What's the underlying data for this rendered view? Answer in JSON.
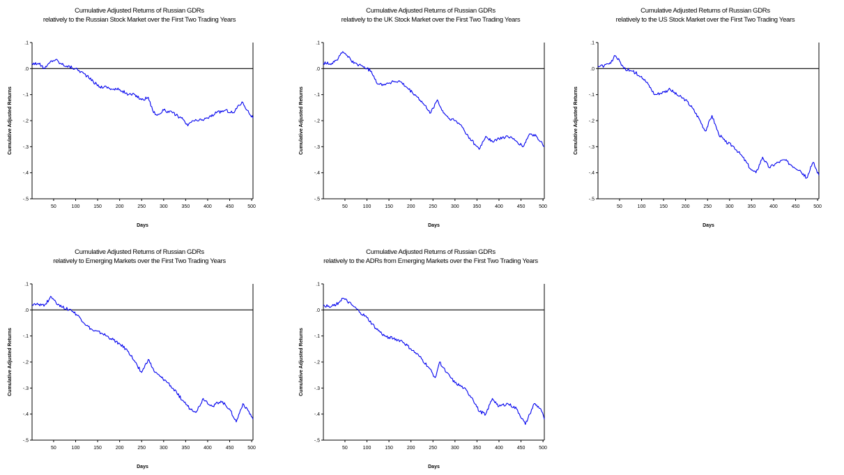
{
  "colors": {
    "series": "#0000ee",
    "axis": "#000000",
    "background": "#ffffff"
  },
  "chart_data": [
    {
      "type": "line",
      "title": "Cumulative Adjusted Returns of Russian GDRs",
      "subtitle": "relatively to the Russian Stock Market over the First Two Trading Years",
      "xlabel": "Days",
      "ylabel": "Cumulative Adjusted Returns",
      "xlim": [
        1,
        503
      ],
      "ylim": [
        -0.5,
        0.1
      ],
      "xticks": [
        50,
        100,
        150,
        200,
        250,
        300,
        350,
        400,
        450,
        500
      ],
      "xtick_labels": [
        "50",
        "100",
        "150",
        "200",
        "250",
        "300",
        "350",
        "400",
        "450",
        "500"
      ],
      "yticks": [
        0.1,
        0.0,
        -0.1,
        -0.2,
        -0.3,
        -0.4,
        -0.5
      ],
      "ytick_labels": [
        ".1",
        ".0",
        "-.1",
        "-.2",
        "-.3",
        "-.4",
        "-.5"
      ],
      "reference_line": 0.0,
      "series": [
        {
          "x": [
            1,
            15,
            30,
            45,
            55,
            65,
            80,
            100,
            120,
            140,
            155,
            170,
            185,
            200,
            220,
            235,
            250,
            265,
            275,
            285,
            300,
            320,
            340,
            355,
            365,
            380,
            400,
            420,
            440,
            460,
            470,
            480,
            490,
            503
          ],
          "values": [
            0.02,
            0.02,
            0.0,
            0.03,
            0.035,
            0.02,
            0.01,
            0.0,
            -0.02,
            -0.05,
            -0.07,
            -0.07,
            -0.08,
            -0.08,
            -0.1,
            -0.1,
            -0.12,
            -0.11,
            -0.16,
            -0.18,
            -0.16,
            -0.17,
            -0.19,
            -0.22,
            -0.2,
            -0.2,
            -0.19,
            -0.17,
            -0.16,
            -0.17,
            -0.14,
            -0.13,
            -0.16,
            -0.19
          ]
        }
      ]
    },
    {
      "type": "line",
      "title": "Cumulative Adjusted Returns of Russian GDRs",
      "subtitle": "relatively to the UK Stock Market over the First Two Trading Years",
      "xlabel": "Days",
      "ylabel": "Cumulative Adjusted Returns",
      "xlim": [
        1,
        503
      ],
      "ylim": [
        -0.5,
        0.1
      ],
      "xticks": [
        50,
        100,
        150,
        200,
        250,
        300,
        350,
        400,
        450,
        500
      ],
      "xtick_labels": [
        "50",
        "100",
        "150",
        "200",
        "250",
        "300",
        "350",
        "400",
        "450",
        "500"
      ],
      "yticks": [
        0.1,
        0.0,
        -0.1,
        -0.2,
        -0.3,
        -0.4,
        -0.5
      ],
      "ytick_labels": [
        ".1",
        ".0",
        "-.1",
        "-.2",
        "-.3",
        "-.4",
        "-.5"
      ],
      "reference_line": 0.0,
      "series": [
        {
          "x": [
            1,
            20,
            35,
            45,
            55,
            70,
            90,
            110,
            125,
            140,
            160,
            175,
            195,
            215,
            230,
            245,
            260,
            270,
            285,
            300,
            315,
            330,
            345,
            355,
            370,
            385,
            400,
            420,
            440,
            455,
            470,
            485,
            495,
            503
          ],
          "values": [
            0.02,
            0.02,
            0.04,
            0.065,
            0.05,
            0.02,
            0.01,
            -0.01,
            -0.06,
            -0.06,
            -0.05,
            -0.05,
            -0.08,
            -0.11,
            -0.14,
            -0.17,
            -0.12,
            -0.16,
            -0.19,
            -0.2,
            -0.22,
            -0.26,
            -0.29,
            -0.31,
            -0.26,
            -0.28,
            -0.27,
            -0.26,
            -0.28,
            -0.3,
            -0.25,
            -0.26,
            -0.28,
            -0.3
          ]
        }
      ]
    },
    {
      "type": "line",
      "title": "Cumulative Adjusted Returns of Russian GDRs",
      "subtitle": "relatively to the US Stock Market over the First Two Trading Years",
      "xlabel": "Days",
      "ylabel": "Cumulative Adjusted Returns",
      "xlim": [
        1,
        503
      ],
      "ylim": [
        -0.5,
        0.1
      ],
      "xticks": [
        50,
        100,
        150,
        200,
        250,
        300,
        350,
        400,
        450,
        500
      ],
      "xtick_labels": [
        "50",
        "100",
        "150",
        "200",
        "250",
        "300",
        "350",
        "400",
        "450",
        "500"
      ],
      "yticks": [
        0.1,
        0.0,
        -0.1,
        -0.2,
        -0.3,
        -0.4,
        -0.5
      ],
      "ytick_labels": [
        ".1",
        ".0",
        "-.1",
        "-.2",
        "-.3",
        "-.4",
        "-.5"
      ],
      "reference_line": 0.0,
      "series": [
        {
          "x": [
            1,
            15,
            30,
            40,
            50,
            60,
            80,
            100,
            115,
            130,
            150,
            165,
            180,
            200,
            215,
            230,
            245,
            260,
            275,
            290,
            310,
            330,
            350,
            360,
            375,
            390,
            410,
            425,
            440,
            460,
            475,
            490,
            503
          ],
          "values": [
            0.01,
            0.01,
            0.02,
            0.05,
            0.03,
            0.0,
            -0.01,
            -0.03,
            -0.06,
            -0.1,
            -0.09,
            -0.08,
            -0.1,
            -0.12,
            -0.15,
            -0.19,
            -0.24,
            -0.18,
            -0.25,
            -0.28,
            -0.3,
            -0.34,
            -0.39,
            -0.4,
            -0.34,
            -0.38,
            -0.36,
            -0.35,
            -0.37,
            -0.39,
            -0.42,
            -0.36,
            -0.41
          ]
        }
      ]
    },
    {
      "type": "line",
      "title": "Cumulative Adjusted Returns of Russian GDRs",
      "subtitle": "relatively to Emerging Markets over the First Two Trading Years",
      "xlabel": "Days",
      "ylabel": "Cumulative Adjusted Returns",
      "xlim": [
        1,
        503
      ],
      "ylim": [
        -0.5,
        0.1
      ],
      "xticks": [
        50,
        100,
        150,
        200,
        250,
        300,
        350,
        400,
        450,
        500
      ],
      "xtick_labels": [
        "50",
        "100",
        "150",
        "200",
        "250",
        "300",
        "350",
        "400",
        "450",
        "500"
      ],
      "yticks": [
        0.1,
        0.0,
        -0.1,
        -0.2,
        -0.3,
        -0.4,
        -0.5
      ],
      "ytick_labels": [
        ".1",
        ".0",
        "-.1",
        "-.2",
        "-.3",
        "-.4",
        "-.5"
      ],
      "reference_line": 0.0,
      "series": [
        {
          "x": [
            1,
            15,
            30,
            45,
            55,
            70,
            90,
            110,
            125,
            140,
            160,
            180,
            200,
            220,
            235,
            250,
            265,
            280,
            295,
            310,
            330,
            345,
            360,
            375,
            390,
            410,
            430,
            450,
            465,
            480,
            490,
            503
          ],
          "values": [
            0.02,
            0.02,
            0.02,
            0.05,
            0.03,
            0.01,
            0.0,
            -0.03,
            -0.06,
            -0.08,
            -0.09,
            -0.11,
            -0.13,
            -0.16,
            -0.2,
            -0.24,
            -0.19,
            -0.24,
            -0.26,
            -0.28,
            -0.32,
            -0.35,
            -0.38,
            -0.39,
            -0.34,
            -0.37,
            -0.35,
            -0.38,
            -0.43,
            -0.36,
            -0.38,
            -0.42
          ]
        }
      ]
    },
    {
      "type": "line",
      "title": "Cumulative Adjusted Returns of Russian GDRs",
      "subtitle": "relatively to the ADRs from Emerging Markets over the First Two Trading Years",
      "xlabel": "Days",
      "ylabel": "Cumulative Adjusted Returns",
      "xlim": [
        1,
        503
      ],
      "ylim": [
        -0.5,
        0.1
      ],
      "xticks": [
        50,
        100,
        150,
        200,
        250,
        300,
        350,
        400,
        450,
        500
      ],
      "xtick_labels": [
        "50",
        "100",
        "150",
        "200",
        "250",
        "300",
        "350",
        "400",
        "450",
        "500"
      ],
      "yticks": [
        0.1,
        0.0,
        -0.1,
        -0.2,
        -0.3,
        -0.4,
        -0.5
      ],
      "ytick_labels": [
        ".1",
        ".0",
        "-.1",
        "-.2",
        "-.3",
        "-.4",
        "-.5"
      ],
      "reference_line": 0.0,
      "series": [
        {
          "x": [
            1,
            15,
            30,
            45,
            50,
            65,
            85,
            100,
            120,
            140,
            160,
            180,
            200,
            220,
            240,
            255,
            265,
            280,
            300,
            320,
            340,
            355,
            370,
            385,
            400,
            420,
            440,
            460,
            470,
            480,
            495,
            503
          ],
          "values": [
            0.02,
            0.01,
            0.02,
            0.045,
            0.04,
            0.02,
            -0.01,
            -0.03,
            -0.07,
            -0.1,
            -0.11,
            -0.12,
            -0.15,
            -0.18,
            -0.22,
            -0.26,
            -0.2,
            -0.24,
            -0.28,
            -0.3,
            -0.34,
            -0.39,
            -0.4,
            -0.34,
            -0.37,
            -0.36,
            -0.38,
            -0.44,
            -0.4,
            -0.36,
            -0.38,
            -0.42
          ]
        }
      ]
    }
  ]
}
